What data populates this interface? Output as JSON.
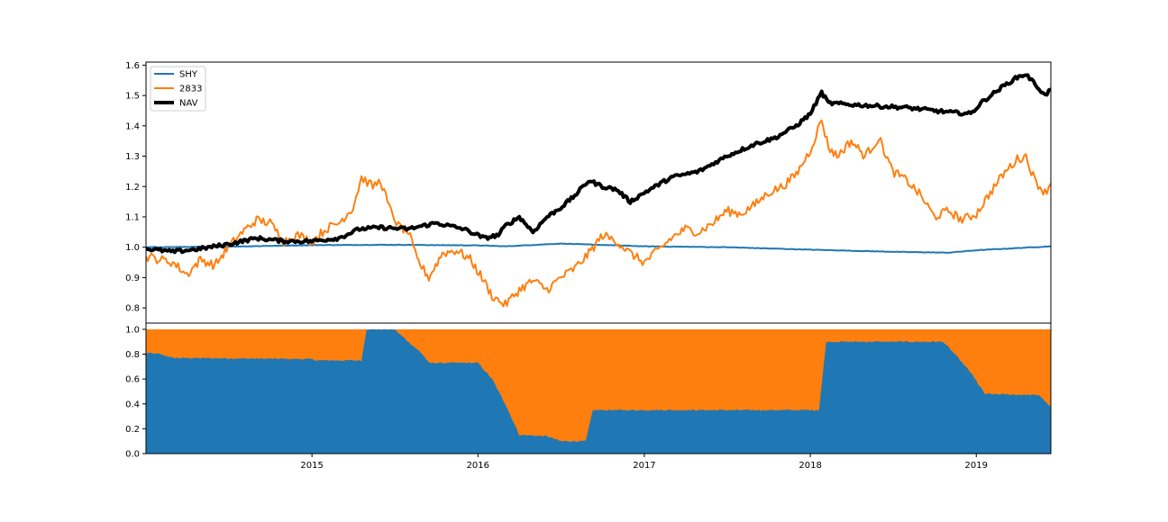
{
  "chart_data": [
    {
      "type": "line",
      "ylim": [
        0.75,
        1.61
      ],
      "yticks": [
        0.8,
        0.9,
        1.0,
        1.1,
        1.2,
        1.3,
        1.4,
        1.5,
        1.6
      ],
      "ytick_labels": [
        "0.8",
        "0.9",
        "1.0",
        "1.1",
        "1.2",
        "1.3",
        "1.4",
        "1.5",
        "1.6"
      ],
      "xlim": [
        "2014-01-01",
        "2019-06-14"
      ],
      "legend": {
        "placement": "upper-left",
        "entries": [
          "SHY",
          "2833",
          "NAV"
        ]
      },
      "grid": false,
      "series": [
        {
          "name": "SHY",
          "color": "#1f77b4",
          "points": [
            [
              "2014-01-01",
              1.0
            ],
            [
              "2014-07-01",
              1.002
            ],
            [
              "2015-01-01",
              1.007
            ],
            [
              "2015-07-01",
              1.008
            ],
            [
              "2016-01-01",
              1.006
            ],
            [
              "2016-03-01",
              1.003
            ],
            [
              "2016-07-01",
              1.012
            ],
            [
              "2017-01-01",
              1.003
            ],
            [
              "2017-07-01",
              1.0
            ],
            [
              "2018-01-01",
              0.992
            ],
            [
              "2018-07-01",
              0.985
            ],
            [
              "2018-11-01",
              0.982
            ],
            [
              "2019-01-01",
              0.99
            ],
            [
              "2019-06-14",
              1.003
            ]
          ]
        },
        {
          "name": "2833",
          "color": "#ff7f0e",
          "points": [
            [
              "2014-01-01",
              0.97
            ],
            [
              "2014-03-01",
              0.95
            ],
            [
              "2014-04-01",
              0.91
            ],
            [
              "2014-05-01",
              0.96
            ],
            [
              "2014-06-01",
              0.94
            ],
            [
              "2014-07-01",
              1.0
            ],
            [
              "2014-08-01",
              1.05
            ],
            [
              "2014-09-01",
              1.09
            ],
            [
              "2014-10-01",
              1.08
            ],
            [
              "2014-11-01",
              1.02
            ],
            [
              "2014-12-01",
              1.04
            ],
            [
              "2015-01-01",
              1.02
            ],
            [
              "2015-02-01",
              1.06
            ],
            [
              "2015-03-01",
              1.08
            ],
            [
              "2015-04-01",
              1.13
            ],
            [
              "2015-04-20",
              1.23
            ],
            [
              "2015-05-15",
              1.2
            ],
            [
              "2015-06-01",
              1.22
            ],
            [
              "2015-06-20",
              1.13
            ],
            [
              "2015-07-10",
              1.07
            ],
            [
              "2015-08-01",
              1.05
            ],
            [
              "2015-08-20",
              0.96
            ],
            [
              "2015-09-15",
              0.9
            ],
            [
              "2015-10-15",
              0.98
            ],
            [
              "2015-11-15",
              0.99
            ],
            [
              "2015-12-15",
              0.96
            ],
            [
              "2016-01-10",
              0.9
            ],
            [
              "2016-02-01",
              0.84
            ],
            [
              "2016-03-01",
              0.81
            ],
            [
              "2016-04-01",
              0.86
            ],
            [
              "2016-05-01",
              0.89
            ],
            [
              "2016-06-01",
              0.86
            ],
            [
              "2016-07-01",
              0.9
            ],
            [
              "2016-08-01",
              0.93
            ],
            [
              "2016-09-01",
              0.98
            ],
            [
              "2016-10-01",
              1.04
            ],
            [
              "2016-11-01",
              1.02
            ],
            [
              "2016-12-01",
              0.98
            ],
            [
              "2017-01-01",
              0.95
            ],
            [
              "2017-02-01",
              0.99
            ],
            [
              "2017-03-01",
              1.03
            ],
            [
              "2017-04-01",
              1.06
            ],
            [
              "2017-05-01",
              1.05
            ],
            [
              "2017-06-01",
              1.08
            ],
            [
              "2017-07-01",
              1.12
            ],
            [
              "2017-08-01",
              1.11
            ],
            [
              "2017-09-01",
              1.14
            ],
            [
              "2017-10-01",
              1.18
            ],
            [
              "2017-11-01",
              1.2
            ],
            [
              "2017-12-01",
              1.24
            ],
            [
              "2018-01-01",
              1.32
            ],
            [
              "2018-01-26",
              1.42
            ],
            [
              "2018-02-10",
              1.33
            ],
            [
              "2018-03-01",
              1.3
            ],
            [
              "2018-04-01",
              1.35
            ],
            [
              "2018-05-01",
              1.3
            ],
            [
              "2018-06-01",
              1.36
            ],
            [
              "2018-07-01",
              1.25
            ],
            [
              "2018-08-01",
              1.22
            ],
            [
              "2018-09-01",
              1.17
            ],
            [
              "2018-10-01",
              1.1
            ],
            [
              "2018-11-01",
              1.12
            ],
            [
              "2018-12-01",
              1.09
            ],
            [
              "2019-01-01",
              1.11
            ],
            [
              "2019-02-01",
              1.18
            ],
            [
              "2019-03-01",
              1.24
            ],
            [
              "2019-04-01",
              1.29
            ],
            [
              "2019-04-20",
              1.3
            ],
            [
              "2019-05-10",
              1.22
            ],
            [
              "2019-06-01",
              1.18
            ],
            [
              "2019-06-14",
              1.21
            ]
          ]
        },
        {
          "name": "NAV",
          "color": "#000000",
          "points": [
            [
              "2014-01-01",
              0.995
            ],
            [
              "2014-03-01",
              0.985
            ],
            [
              "2014-05-01",
              0.995
            ],
            [
              "2014-07-01",
              1.01
            ],
            [
              "2014-09-01",
              1.03
            ],
            [
              "2014-11-01",
              1.02
            ],
            [
              "2015-01-01",
              1.02
            ],
            [
              "2015-03-01",
              1.03
            ],
            [
              "2015-04-15",
              1.06
            ],
            [
              "2015-06-01",
              1.065
            ],
            [
              "2015-08-01",
              1.06
            ],
            [
              "2015-10-01",
              1.08
            ],
            [
              "2015-12-01",
              1.06
            ],
            [
              "2016-01-15",
              1.03
            ],
            [
              "2016-02-15",
              1.04
            ],
            [
              "2016-03-01",
              1.07
            ],
            [
              "2016-04-01",
              1.1
            ],
            [
              "2016-05-01",
              1.05
            ],
            [
              "2016-06-01",
              1.1
            ],
            [
              "2016-07-01",
              1.13
            ],
            [
              "2016-08-01",
              1.17
            ],
            [
              "2016-09-01",
              1.22
            ],
            [
              "2016-10-01",
              1.2
            ],
            [
              "2016-11-01",
              1.19
            ],
            [
              "2016-12-01",
              1.15
            ],
            [
              "2017-01-01",
              1.18
            ],
            [
              "2017-03-01",
              1.23
            ],
            [
              "2017-05-01",
              1.25
            ],
            [
              "2017-07-01",
              1.3
            ],
            [
              "2017-09-01",
              1.34
            ],
            [
              "2017-10-15",
              1.36
            ],
            [
              "2017-12-01",
              1.4
            ],
            [
              "2018-01-01",
              1.44
            ],
            [
              "2018-01-26",
              1.51
            ],
            [
              "2018-02-10",
              1.475
            ],
            [
              "2018-04-01",
              1.47
            ],
            [
              "2018-06-01",
              1.465
            ],
            [
              "2018-08-01",
              1.46
            ],
            [
              "2018-10-01",
              1.45
            ],
            [
              "2018-11-01",
              1.445
            ],
            [
              "2018-12-20",
              1.44
            ],
            [
              "2019-01-15",
              1.48
            ],
            [
              "2019-03-01",
              1.53
            ],
            [
              "2019-04-01",
              1.56
            ],
            [
              "2019-04-20",
              1.57
            ],
            [
              "2019-05-15",
              1.53
            ],
            [
              "2019-06-01",
              1.5
            ],
            [
              "2019-06-14",
              1.52
            ]
          ]
        }
      ]
    },
    {
      "type": "area",
      "stacked": true,
      "ylim": [
        0.0,
        1.05
      ],
      "yticks": [
        0.0,
        0.2,
        0.4,
        0.6,
        0.8,
        1.0
      ],
      "ytick_labels": [
        "0.0",
        "0.2",
        "0.4",
        "0.6",
        "0.8",
        "1.0"
      ],
      "xlim": [
        "2014-01-01",
        "2019-06-14"
      ],
      "xticks": [
        "2015-01-01",
        "2016-01-01",
        "2017-01-01",
        "2018-01-01",
        "2019-01-01"
      ],
      "xtick_labels": [
        "2015",
        "2016",
        "2017",
        "2018",
        "2019"
      ],
      "grid": false,
      "series": [
        {
          "name": "SHY",
          "color": "#1f77b4",
          "points": [
            [
              "2014-01-01",
              0.81
            ],
            [
              "2014-02-01",
              0.8
            ],
            [
              "2014-03-01",
              0.77
            ],
            [
              "2015-01-01",
              0.76
            ],
            [
              "2015-01-10",
              0.75
            ],
            [
              "2015-04-20",
              0.75
            ],
            [
              "2015-05-01",
              1.0
            ],
            [
              "2015-07-01",
              1.0
            ],
            [
              "2015-09-01",
              0.8
            ],
            [
              "2015-09-15",
              0.73
            ],
            [
              "2016-01-01",
              0.73
            ],
            [
              "2016-02-01",
              0.6
            ],
            [
              "2016-03-01",
              0.4
            ],
            [
              "2016-04-01",
              0.15
            ],
            [
              "2016-06-01",
              0.14
            ],
            [
              "2016-07-01",
              0.1
            ],
            [
              "2016-08-25",
              0.1
            ],
            [
              "2016-09-10",
              0.35
            ],
            [
              "2017-06-01",
              0.35
            ],
            [
              "2018-01-01",
              0.35
            ],
            [
              "2018-01-20",
              0.35
            ],
            [
              "2018-02-05",
              0.9
            ],
            [
              "2018-10-20",
              0.9
            ],
            [
              "2018-11-15",
              0.8
            ],
            [
              "2018-12-20",
              0.65
            ],
            [
              "2019-01-20",
              0.48
            ],
            [
              "2019-05-20",
              0.47
            ],
            [
              "2019-06-14",
              0.37
            ]
          ]
        },
        {
          "name": "2833",
          "color": "#ff7f0e",
          "fill_to": 1.0
        }
      ]
    }
  ]
}
